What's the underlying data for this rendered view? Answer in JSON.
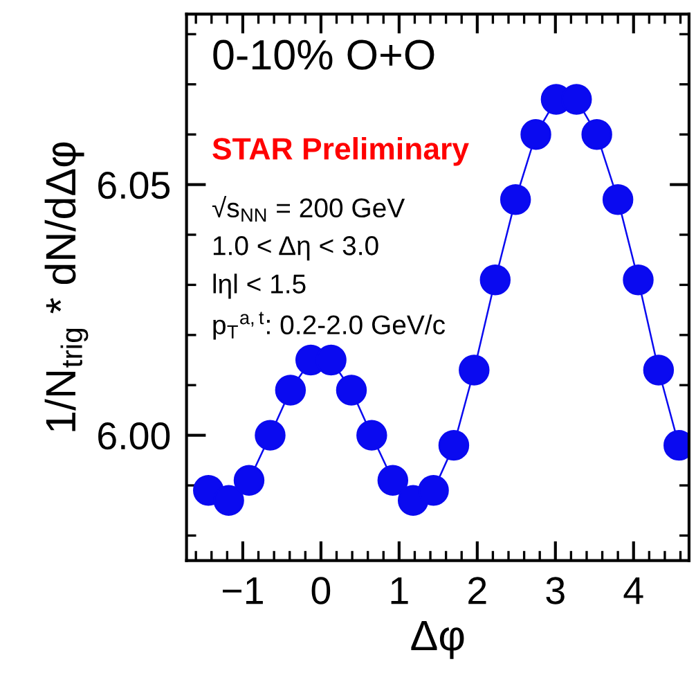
{
  "chart_data": {
    "type": "line",
    "xlabel": "Δφ",
    "ylabel": "1/N$_{trig}$ * dN/dΔφ",
    "x": [
      -1.44,
      -1.18,
      -0.92,
      -0.65,
      -0.39,
      -0.13,
      0.13,
      0.39,
      0.65,
      0.92,
      1.18,
      1.44,
      1.7,
      1.96,
      2.23,
      2.49,
      2.75,
      3.01,
      3.27,
      3.53,
      3.8,
      4.06,
      4.32,
      4.58
    ],
    "series": [
      {
        "color": "#0a0af0",
        "values": [
          5.989,
          5.987,
          5.991,
          6.0,
          6.009,
          6.015,
          6.015,
          6.009,
          6.0,
          5.991,
          5.987,
          5.989,
          5.998,
          6.013,
          6.031,
          6.047,
          6.06,
          6.067,
          6.067,
          6.06,
          6.047,
          6.031,
          6.013,
          5.998
        ]
      }
    ],
    "marker": "circle",
    "line_style": "solid",
    "xlim": [
      -1.72,
      4.71
    ],
    "ylim": [
      5.975,
      6.084
    ],
    "xticks": [
      {
        "value": -1,
        "label": "−1"
      },
      0,
      1,
      2,
      3,
      4
    ],
    "yticks": [
      {
        "value": 6.0,
        "label": "6.00"
      },
      6.05
    ],
    "grid": false,
    "legend": false,
    "annotations": [
      "0-10% O+O",
      "STAR Preliminary",
      "√s$_{NN}$ = 200 GeV",
      "1.0 < Δη < 3.0",
      "lηl < 1.5",
      "p$_{T}$$^{a,t}$: 0.2-2.0 GeV/c"
    ]
  }
}
